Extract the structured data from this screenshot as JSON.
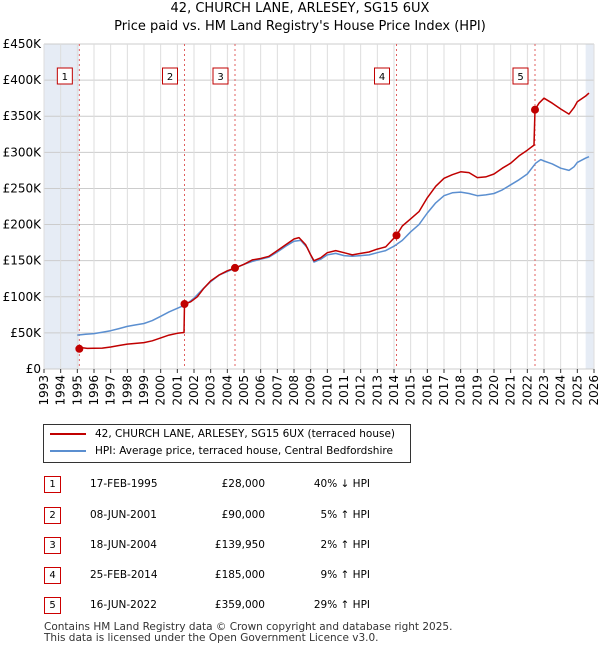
{
  "chart_data": {
    "type": "line",
    "title": "42, CHURCH LANE, ARLESEY, SG15 6UX",
    "subtitle": "Price paid vs. HM Land Registry's House Price Index (HPI)",
    "ylim": [
      0,
      450000
    ],
    "xlim": [
      1993,
      2026
    ],
    "y_ticks": [
      {
        "value": 0,
        "label": "£0"
      },
      {
        "value": 50000,
        "label": "£50K"
      },
      {
        "value": 100000,
        "label": "£100K"
      },
      {
        "value": 150000,
        "label": "£150K"
      },
      {
        "value": 200000,
        "label": "£200K"
      },
      {
        "value": 250000,
        "label": "£250K"
      },
      {
        "value": 300000,
        "label": "£300K"
      },
      {
        "value": 350000,
        "label": "£350K"
      },
      {
        "value": 400000,
        "label": "£400K"
      },
      {
        "value": 450000,
        "label": "£450K"
      }
    ],
    "x_ticks": [
      "1993",
      "1994",
      "1995",
      "1996",
      "1997",
      "1998",
      "1999",
      "2000",
      "2001",
      "2002",
      "2003",
      "2004",
      "2005",
      "2006",
      "2007",
      "2008",
      "2009",
      "2010",
      "2011",
      "2012",
      "2013",
      "2014",
      "2015",
      "2016",
      "2017",
      "2018",
      "2019",
      "2020",
      "2021",
      "2022",
      "2023",
      "2024",
      "2025",
      "2026"
    ],
    "shaded_ranges": [
      [
        1993,
        1995.12
      ],
      [
        2025.5,
        2026
      ]
    ],
    "series": [
      {
        "name": "42, CHURCH LANE, ARLESEY, SG15 6UX (terraced house)",
        "color": "#c00000",
        "points": [
          [
            1995.12,
            28000
          ],
          [
            1995.3,
            29500
          ],
          [
            1995.6,
            28500
          ],
          [
            1996,
            28800
          ],
          [
            1996.5,
            29000
          ],
          [
            1997,
            30500
          ],
          [
            1997.5,
            32500
          ],
          [
            1998,
            34500
          ],
          [
            1998.5,
            35500
          ],
          [
            1999,
            36500
          ],
          [
            1999.5,
            39000
          ],
          [
            2000,
            43000
          ],
          [
            2000.5,
            47000
          ],
          [
            2001,
            49500
          ],
          [
            2001.4,
            50500
          ],
          [
            2001.43,
            90000
          ],
          [
            2001.8,
            93000
          ],
          [
            2002.2,
            100000
          ],
          [
            2002.6,
            112000
          ],
          [
            2003,
            122000
          ],
          [
            2003.5,
            130000
          ],
          [
            2004,
            136000
          ],
          [
            2004.46,
            139950
          ],
          [
            2005,
            145000
          ],
          [
            2005.5,
            151000
          ],
          [
            2006,
            153000
          ],
          [
            2006.5,
            156000
          ],
          [
            2007,
            164000
          ],
          [
            2007.5,
            172000
          ],
          [
            2008,
            180000
          ],
          [
            2008.3,
            182000
          ],
          [
            2008.7,
            172000
          ],
          [
            2009,
            158000
          ],
          [
            2009.2,
            150000
          ],
          [
            2009.6,
            154000
          ],
          [
            2010,
            161000
          ],
          [
            2010.5,
            164000
          ],
          [
            2011,
            161000
          ],
          [
            2011.5,
            158000
          ],
          [
            2012,
            160000
          ],
          [
            2012.5,
            162000
          ],
          [
            2013,
            166000
          ],
          [
            2013.5,
            169000
          ],
          [
            2014.15,
            185000
          ],
          [
            2014.5,
            198000
          ],
          [
            2015,
            208000
          ],
          [
            2015.5,
            218000
          ],
          [
            2016,
            237000
          ],
          [
            2016.5,
            253000
          ],
          [
            2017,
            264000
          ],
          [
            2017.5,
            269000
          ],
          [
            2018,
            273000
          ],
          [
            2018.5,
            272000
          ],
          [
            2019,
            265000
          ],
          [
            2019.5,
            266000
          ],
          [
            2020,
            270000
          ],
          [
            2020.5,
            278000
          ],
          [
            2021,
            285000
          ],
          [
            2021.5,
            295000
          ],
          [
            2022,
            303000
          ],
          [
            2022.4,
            310000
          ],
          [
            2022.46,
            359000
          ],
          [
            2022.7,
            368000
          ],
          [
            2023,
            375000
          ],
          [
            2023.5,
            368000
          ],
          [
            2024,
            360000
          ],
          [
            2024.5,
            353000
          ],
          [
            2024.8,
            362000
          ],
          [
            2025,
            370000
          ],
          [
            2025.5,
            378000
          ],
          [
            2025.7,
            382000
          ]
        ]
      },
      {
        "name": "HPI: Average price, terraced house, Central Bedfordshire",
        "color": "#5b8fd0",
        "points": [
          [
            1995,
            47000
          ],
          [
            1995.5,
            48000
          ],
          [
            1996,
            49000
          ],
          [
            1996.5,
            51000
          ],
          [
            1997,
            53000
          ],
          [
            1997.5,
            56000
          ],
          [
            1998,
            59000
          ],
          [
            1998.5,
            61000
          ],
          [
            1999,
            63000
          ],
          [
            1999.5,
            67000
          ],
          [
            2000,
            73000
          ],
          [
            2000.5,
            79000
          ],
          [
            2001,
            84000
          ],
          [
            2001.5,
            89000
          ],
          [
            2002,
            98000
          ],
          [
            2002.5,
            110000
          ],
          [
            2003,
            121000
          ],
          [
            2003.5,
            130000
          ],
          [
            2004,
            135000
          ],
          [
            2004.5,
            140000
          ],
          [
            2005,
            145000
          ],
          [
            2005.5,
            149000
          ],
          [
            2006,
            152000
          ],
          [
            2006.5,
            155000
          ],
          [
            2007,
            162000
          ],
          [
            2007.5,
            170000
          ],
          [
            2008,
            177000
          ],
          [
            2008.4,
            178000
          ],
          [
            2008.8,
            168000
          ],
          [
            2009.2,
            148000
          ],
          [
            2009.6,
            152000
          ],
          [
            2010,
            158000
          ],
          [
            2010.5,
            160000
          ],
          [
            2011,
            157000
          ],
          [
            2011.5,
            156000
          ],
          [
            2012,
            157000
          ],
          [
            2012.5,
            158000
          ],
          [
            2013,
            161000
          ],
          [
            2013.5,
            164000
          ],
          [
            2014,
            170000
          ],
          [
            2014.5,
            178000
          ],
          [
            2015,
            190000
          ],
          [
            2015.5,
            200000
          ],
          [
            2016,
            216000
          ],
          [
            2016.5,
            230000
          ],
          [
            2017,
            240000
          ],
          [
            2017.5,
            244000
          ],
          [
            2018,
            245000
          ],
          [
            2018.5,
            243000
          ],
          [
            2019,
            240000
          ],
          [
            2019.5,
            241000
          ],
          [
            2020,
            243000
          ],
          [
            2020.5,
            248000
          ],
          [
            2021,
            255000
          ],
          [
            2021.5,
            262000
          ],
          [
            2022,
            270000
          ],
          [
            2022.5,
            285000
          ],
          [
            2022.8,
            290000
          ],
          [
            2023,
            288000
          ],
          [
            2023.5,
            284000
          ],
          [
            2024,
            278000
          ],
          [
            2024.5,
            275000
          ],
          [
            2024.8,
            280000
          ],
          [
            2025,
            286000
          ],
          [
            2025.5,
            292000
          ],
          [
            2025.7,
            294000
          ]
        ]
      }
    ],
    "sales": [
      {
        "n": "1",
        "x": 1995.12,
        "price": 28000
      },
      {
        "n": "2",
        "x": 2001.43,
        "price": 90000
      },
      {
        "n": "3",
        "x": 2004.46,
        "price": 139950
      },
      {
        "n": "4",
        "x": 2014.15,
        "price": 185000
      },
      {
        "n": "5",
        "x": 2022.46,
        "price": 359000
      }
    ]
  },
  "legend": {
    "property": "42, CHURCH LANE, ARLESEY, SG15 6UX (terraced house)",
    "hpi": "HPI: Average price, terraced house, Central Bedfordshire"
  },
  "table": [
    {
      "n": "1",
      "date": "17-FEB-1995",
      "price": "£28,000",
      "hpi": "40% ↓ HPI"
    },
    {
      "n": "2",
      "date": "08-JUN-2001",
      "price": "£90,000",
      "hpi": "5% ↑ HPI"
    },
    {
      "n": "3",
      "date": "18-JUN-2004",
      "price": "£139,950",
      "hpi": "2% ↑ HPI"
    },
    {
      "n": "4",
      "date": "25-FEB-2014",
      "price": "£185,000",
      "hpi": "9% ↑ HPI"
    },
    {
      "n": "5",
      "date": "16-JUN-2022",
      "price": "£359,000",
      "hpi": "29% ↑ HPI"
    }
  ],
  "footer": {
    "line1": "Contains HM Land Registry data © Crown copyright and database right 2025.",
    "line2": "This data is licensed under the Open Government Licence v3.0."
  }
}
